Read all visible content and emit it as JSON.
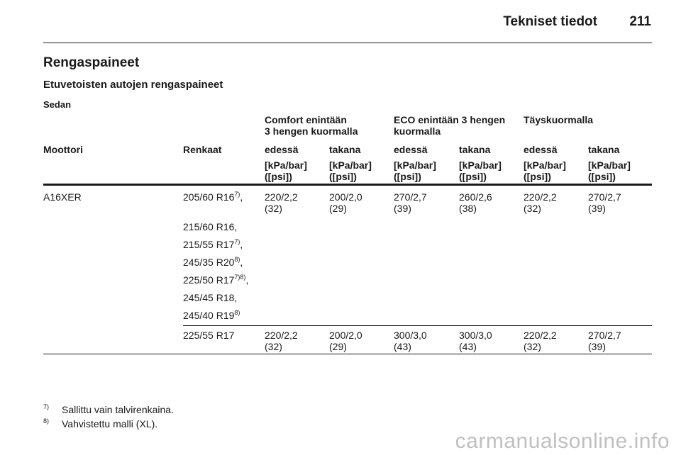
{
  "header": {
    "title": "Tekniset tiedot",
    "page": "211"
  },
  "section": {
    "title": "Rengaspaineet",
    "subtitle": "Etuvetoisten autojen rengaspaineet",
    "body_type": "Sedan"
  },
  "table": {
    "groups": [
      "Comfort enintään",
      "3 hengen kuormalla",
      "ECO enintään 3 hengen",
      "kuormalla",
      "Täyskuormalla"
    ],
    "columns": [
      "Moottori",
      "Renkaat",
      "edessä",
      "takana",
      "edessä",
      "takana",
      "edessä",
      "takana"
    ],
    "unit_line1": "[kPa/bar]",
    "unit_line2": "([psi])",
    "engine": "A16XER",
    "row1": {
      "tyre": "205/60 R16",
      "tyre_sup": "7)",
      "tyre_suffix": ",",
      "values": [
        "220/2,2",
        "200/2,0",
        "270/2,7",
        "260/2,6",
        "220/2,2",
        "270/2,7"
      ],
      "psi": [
        "(32)",
        "(29)",
        "(39)",
        "(38)",
        "(32)",
        "(39)"
      ]
    },
    "tyres_more": [
      {
        "size": "215/60 R16",
        "sup": "",
        "suffix": ","
      },
      {
        "size": "215/55 R17",
        "sup": "7)",
        "suffix": ","
      },
      {
        "size": "245/35 R20",
        "sup": "8)",
        "suffix": ","
      },
      {
        "size": "225/50 R17",
        "sup": "7)8)",
        "suffix": ","
      },
      {
        "size": "245/45 R18",
        "sup": "",
        "suffix": ","
      },
      {
        "size": "245/40 R19",
        "sup": "8)",
        "suffix": ""
      }
    ],
    "row2": {
      "tyre": "225/55 R17",
      "values": [
        "220/2,2",
        "200/2,0",
        "300/3,0",
        "300/3,0",
        "220/2,2",
        "270/2,7"
      ],
      "psi": [
        "(32)",
        "(29)",
        "(43)",
        "(43)",
        "(32)",
        "(39)"
      ]
    }
  },
  "footnotes": [
    {
      "mark": "7)",
      "text": "Sallittu vain talvirenkaina."
    },
    {
      "mark": "8)",
      "text": "Vahvistettu malli (XL)."
    }
  ],
  "watermark": "carmanualsonline.info"
}
